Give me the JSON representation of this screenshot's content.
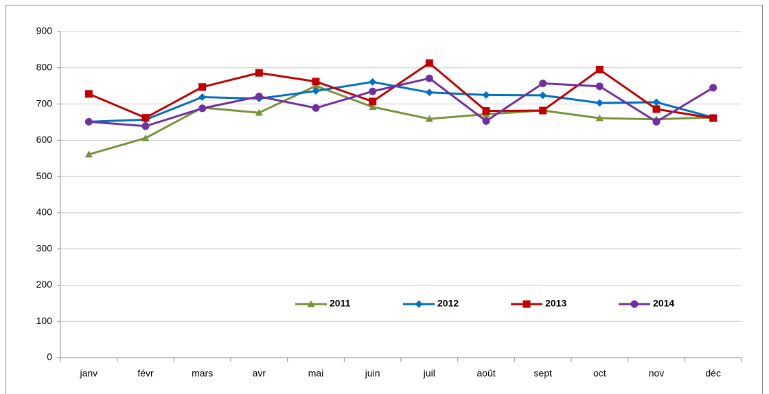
{
  "chart_data": {
    "type": "line",
    "categories": [
      "janv",
      "févr",
      "mars",
      "avr",
      "mai",
      "juin",
      "juil",
      "août",
      "sept",
      "oct",
      "nov",
      "déc"
    ],
    "series": [
      {
        "name": "2011",
        "color": "#77933c",
        "marker": "triangle",
        "values": [
          561,
          606,
          690,
          676,
          750,
          692,
          659,
          672,
          682,
          661,
          658,
          663
        ]
      },
      {
        "name": "2012",
        "color": "#0070c0",
        "marker": "diamond",
        "values": [
          651,
          657,
          719,
          715,
          736,
          761,
          732,
          725,
          724,
          703,
          705,
          663
        ]
      },
      {
        "name": "2013",
        "color": "#c00000",
        "marker": "square",
        "values": [
          728,
          662,
          747,
          786,
          762,
          707,
          813,
          681,
          682,
          795,
          686,
          661
        ]
      },
      {
        "name": "2014",
        "color": "#7030a0",
        "marker": "circle",
        "values": [
          651,
          639,
          688,
          721,
          689,
          735,
          771,
          653,
          757,
          749,
          651,
          745
        ]
      }
    ],
    "ylim": [
      0,
      900
    ],
    "yticks": [
      0,
      100,
      200,
      300,
      400,
      500,
      600,
      700,
      800,
      900
    ],
    "grid": true,
    "legend": "lower-center"
  }
}
